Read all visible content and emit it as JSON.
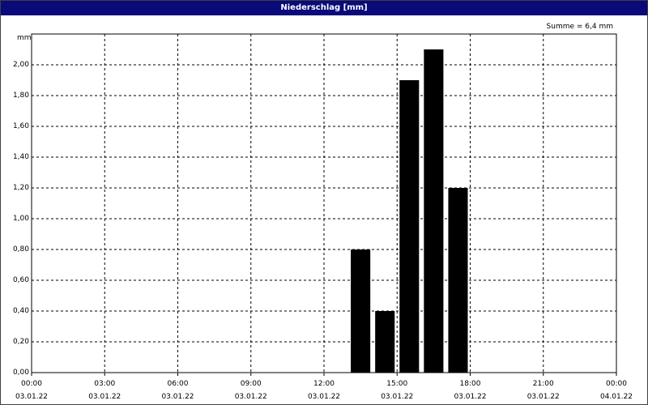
{
  "chart_data": {
    "type": "histogram",
    "title": "Niederschlag [mm]",
    "annotation": "Summe = 6,4 mm",
    "y_label": "mm",
    "bins": [
      13,
      14,
      15,
      16,
      17,
      18
    ],
    "values": [
      0.8,
      0.4,
      1.9,
      2.1,
      1.2
    ],
    "color": "#000000",
    "xlim": [
      0,
      24
    ],
    "xticks": [
      {
        "value": 0,
        "label": "00:00\n03.01.22"
      },
      {
        "value": 3,
        "label": "03:00\n03.01.22"
      },
      {
        "value": 6,
        "label": "06:00\n03.01.22"
      },
      {
        "value": 9,
        "label": "09:00\n03.01.22"
      },
      {
        "value": 12,
        "label": "12:00\n03.01.22"
      },
      {
        "value": 15,
        "label": "15:00\n03.01.22"
      },
      {
        "value": 18,
        "label": "18:00\n03.01.22"
      },
      {
        "value": 21,
        "label": "21:00\n03.01.22"
      },
      {
        "value": 24,
        "label": "00:00\n04.01.22"
      }
    ],
    "ylim": [
      0,
      2.2
    ],
    "yticks": [
      {
        "value": 0,
        "label": "0,00"
      },
      {
        "value": 0.2,
        "label": "0,20"
      },
      {
        "value": 0.4,
        "label": "0,40"
      },
      {
        "value": 0.6,
        "label": "0,60"
      },
      {
        "value": 0.8,
        "label": "0,80"
      },
      {
        "value": 1,
        "label": "1,00"
      },
      {
        "value": 1.2,
        "label": "1,20"
      },
      {
        "value": 1.4,
        "label": "1,40"
      },
      {
        "value": 1.6,
        "label": "1,60"
      },
      {
        "value": 1.8,
        "label": "1,80"
      },
      {
        "value": 2,
        "label": "2,00"
      }
    ],
    "grid": true
  }
}
